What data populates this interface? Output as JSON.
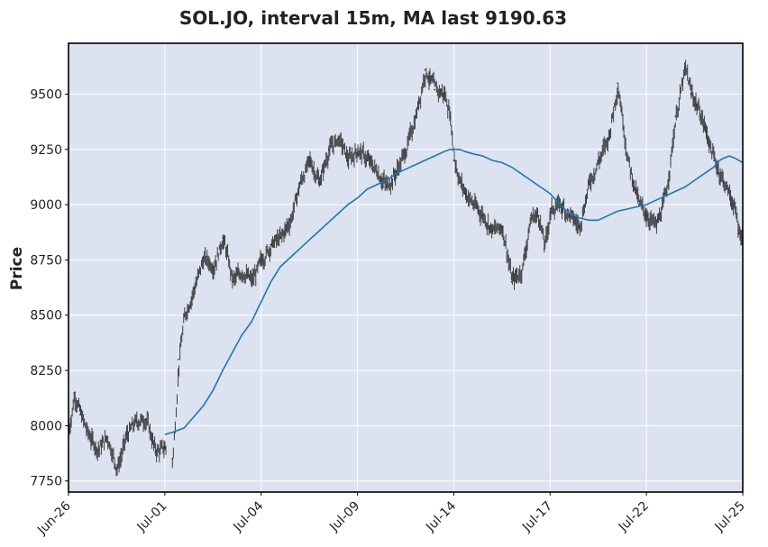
{
  "chart_data": {
    "type": "candlestick",
    "title": "SOL.JO, interval 15m, MA last 9190.63",
    "xlabel": "",
    "ylabel": "Price",
    "ylim": [
      7700,
      9730
    ],
    "y_ticks": [
      7750,
      8000,
      8250,
      8500,
      8750,
      9000,
      9250,
      9500
    ],
    "x_ticks": [
      "Jun-26",
      "Jul-01",
      "Jul-04",
      "Jul-09",
      "Jul-14",
      "Jul-17",
      "Jul-22",
      "Jul-25"
    ],
    "x_tick_positions": [
      0,
      5,
      10,
      15,
      20,
      25,
      30,
      35
    ],
    "x_range": [
      0,
      35
    ],
    "grid": true,
    "colors": {
      "plot_background": "#dce2ef",
      "grid": "#ffffff",
      "candles": "#222222",
      "moving_average": "#1f77b4"
    },
    "series": [
      {
        "name": "price",
        "x": [
          0,
          0.3,
          0.6,
          1.0,
          1.5,
          2.0,
          2.5,
          3.0,
          3.5,
          4.0,
          4.5,
          5.0,
          5.4,
          5.7,
          6.0,
          6.5,
          7.0,
          7.5,
          8.0,
          8.5,
          9.0,
          9.5,
          10.0,
          10.5,
          11.0,
          11.5,
          12.0,
          12.5,
          13.0,
          13.5,
          14.0,
          14.5,
          15.0,
          15.5,
          16.0,
          16.5,
          17.0,
          17.5,
          18.0,
          18.5,
          19.0,
          19.5,
          19.8,
          20.0,
          20.3,
          20.6,
          21.0,
          21.5,
          22.0,
          22.5,
          23.0,
          23.5,
          24.0,
          24.4,
          24.7,
          25.0,
          25.5,
          26.0,
          26.5,
          27.0,
          27.5,
          28.0,
          28.5,
          29.0,
          29.3,
          29.6,
          30.0,
          30.5,
          31.0,
          31.5,
          32.0,
          32.3,
          32.6,
          33.0,
          33.5,
          34.0,
          34.5,
          34.8,
          35.0
        ],
        "values": [
          7980,
          8150,
          8050,
          7960,
          7890,
          7950,
          7800,
          7960,
          8020,
          8030,
          7880,
          7900,
          7850,
          8300,
          8500,
          8620,
          8760,
          8720,
          8850,
          8650,
          8700,
          8650,
          8750,
          8820,
          8850,
          8930,
          9100,
          9200,
          9100,
          9250,
          9300,
          9200,
          9250,
          9200,
          9150,
          9080,
          9150,
          9250,
          9400,
          9610,
          9520,
          9500,
          9400,
          9200,
          9100,
          9050,
          9000,
          8950,
          8880,
          8900,
          8650,
          8700,
          8950,
          8950,
          8800,
          8980,
          9000,
          8950,
          8900,
          9100,
          9200,
          9300,
          9550,
          9200,
          9100,
          9000,
          8950,
          8900,
          9050,
          9400,
          9620,
          9500,
          9450,
          9350,
          9200,
          9100,
          9000,
          8870,
          8850
        ]
      },
      {
        "name": "moving_average",
        "x": [
          5.0,
          5.4,
          6.0,
          6.5,
          7.0,
          7.5,
          8.0,
          8.5,
          9.0,
          9.5,
          10.0,
          10.5,
          11.0,
          11.5,
          12.0,
          12.5,
          13.0,
          13.5,
          14.0,
          14.5,
          15.0,
          15.5,
          16.0,
          16.5,
          17.0,
          17.5,
          18.0,
          18.5,
          19.0,
          19.5,
          19.8,
          20.0,
          20.3,
          20.6,
          21.0,
          21.5,
          22.0,
          22.5,
          23.0,
          23.5,
          24.0,
          24.5,
          25.0,
          25.5,
          26.0,
          26.5,
          27.0,
          27.5,
          28.0,
          28.5,
          29.0,
          29.5,
          30.0,
          30.5,
          31.0,
          31.5,
          32.0,
          32.5,
          33.0,
          33.5,
          33.8,
          34.0,
          34.3,
          34.6,
          35.0
        ],
        "values": [
          7960,
          7970,
          7990,
          8040,
          8090,
          8160,
          8250,
          8330,
          8410,
          8470,
          8560,
          8650,
          8720,
          8760,
          8800,
          8840,
          8880,
          8920,
          8960,
          9000,
          9030,
          9070,
          9090,
          9110,
          9140,
          9160,
          9180,
          9200,
          9220,
          9240,
          9250,
          9250,
          9250,
          9240,
          9230,
          9220,
          9200,
          9190,
          9170,
          9140,
          9110,
          9080,
          9050,
          9000,
          8960,
          8940,
          8930,
          8930,
          8950,
          8970,
          8980,
          8990,
          9000,
          9020,
          9040,
          9060,
          9080,
          9110,
          9140,
          9170,
          9200,
          9210,
          9220,
          9210,
          9190
        ]
      }
    ]
  }
}
